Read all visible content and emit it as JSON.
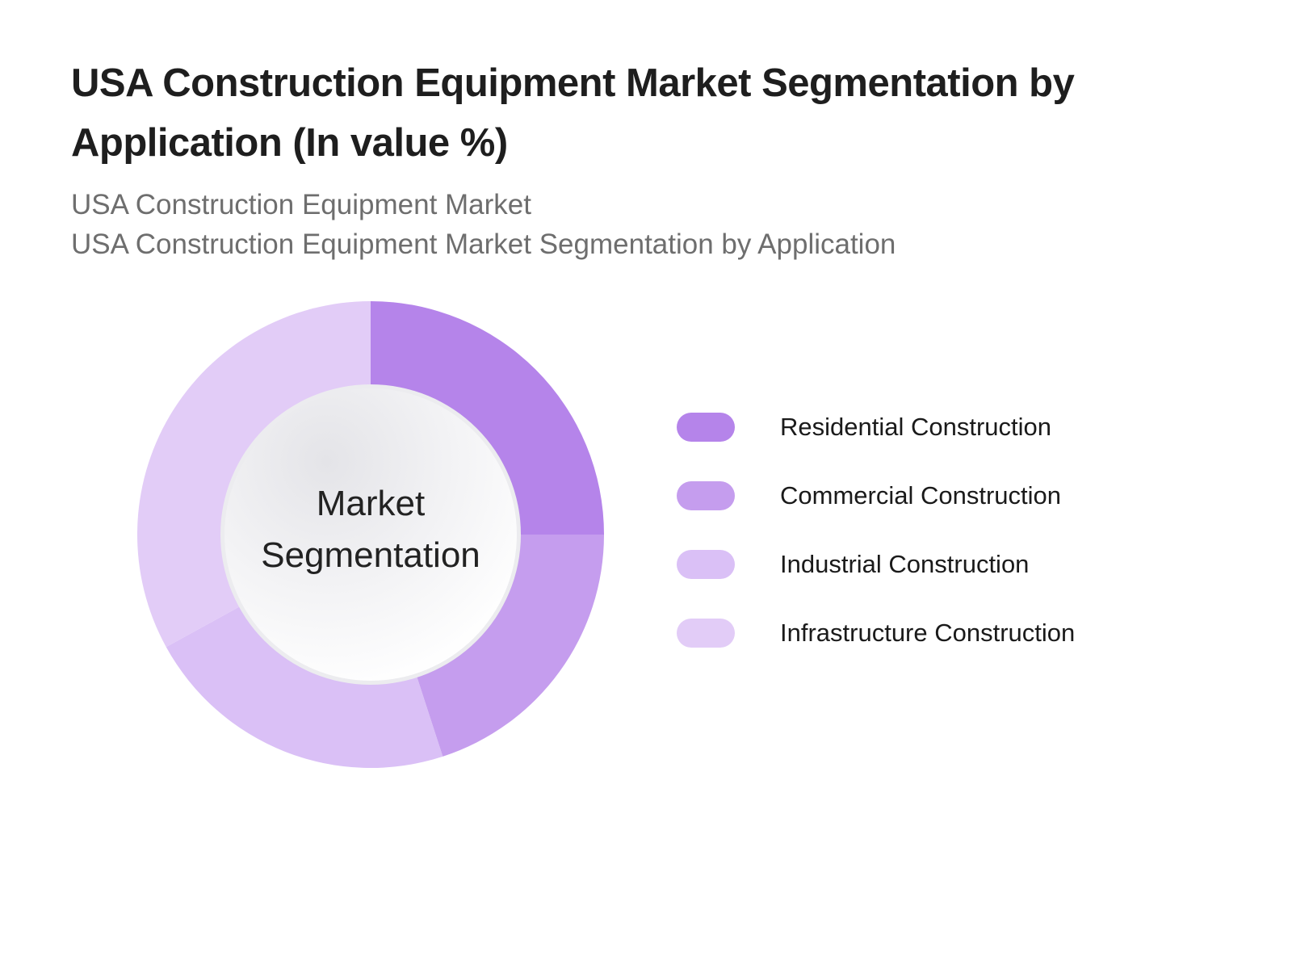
{
  "header": {
    "title": "USA Construction Equipment Market Segmentation by Application (In value %)",
    "subtitle_line1": "USA Construction Equipment Market",
    "subtitle_line2": "USA Construction Equipment Market Segmentation by Application"
  },
  "center_label": {
    "line1": "Market",
    "line2": "Segmentation"
  },
  "colors": {
    "residential": "#B584EA",
    "commercial": "#C59DEE",
    "industrial": "#DAC0F6",
    "infrastructure": "#E2CCF7"
  },
  "legend": [
    {
      "label": "Residential Construction",
      "color": "#B584EA"
    },
    {
      "label": "Commercial Construction",
      "color": "#C59DEE"
    },
    {
      "label": "Industrial Construction",
      "color": "#DAC0F6"
    },
    {
      "label": "Infrastructure Construction",
      "color": "#E2CCF7"
    }
  ],
  "chart_data": {
    "type": "pie",
    "variant": "donut",
    "title": "USA Construction Equipment Market Segmentation by Application (In value %)",
    "subtitle": "USA Construction Equipment Market Segmentation by Application",
    "center_text": "Market Segmentation",
    "categories": [
      "Residential Construction",
      "Commercial Construction",
      "Industrial Construction",
      "Infrastructure Construction"
    ],
    "values": [
      25,
      20,
      22,
      33
    ],
    "unit": "%",
    "colors": [
      "#B584EA",
      "#C59DEE",
      "#DAC0F6",
      "#E2CCF7"
    ],
    "start_angle_deg": 0,
    "direction": "clockwise",
    "legend_position": "right",
    "data_labels": false
  }
}
